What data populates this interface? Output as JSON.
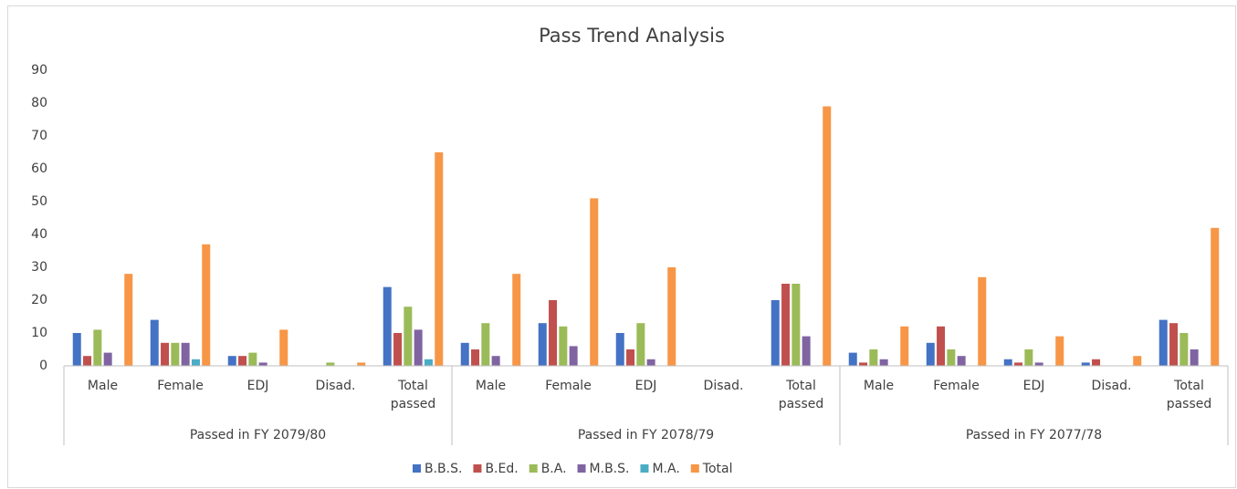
{
  "chart_data": {
    "type": "bar",
    "title": "Pass Trend Analysis",
    "categories": [
      "Male",
      "Female",
      "EDJ",
      "Disad.",
      "Total passed",
      "Male",
      "Female",
      "EDJ",
      "Disad.",
      "Total passed",
      "Male",
      "Female",
      "EDJ",
      "Disad.",
      "Total passed"
    ],
    "groups": [
      "Passed in FY 2079/80",
      "Passed in FY 2078/79",
      "Passed in FY 2077/78"
    ],
    "series": [
      {
        "name": "B.B.S.",
        "color": "#4472c4",
        "values": [
          10,
          14,
          3,
          0,
          24,
          7,
          13,
          10,
          0,
          20,
          4,
          7,
          2,
          1,
          14
        ]
      },
      {
        "name": "B.Ed.",
        "color": "#c0504d",
        "values": [
          3,
          7,
          3,
          0,
          10,
          5,
          20,
          5,
          0,
          25,
          1,
          12,
          1,
          2,
          13
        ]
      },
      {
        "name": "B.A.",
        "color": "#9bbb59",
        "values": [
          11,
          7,
          4,
          1,
          18,
          13,
          12,
          13,
          0,
          25,
          5,
          5,
          5,
          0,
          10
        ]
      },
      {
        "name": "M.B.S.",
        "color": "#8064a2",
        "values": [
          4,
          7,
          1,
          0,
          11,
          3,
          6,
          2,
          0,
          9,
          2,
          3,
          1,
          0,
          5
        ]
      },
      {
        "name": "M.A.",
        "color": "#4bacc6",
        "values": [
          0,
          2,
          0,
          0,
          2,
          0,
          0,
          0,
          0,
          0,
          0,
          0,
          0,
          0,
          0
        ]
      },
      {
        "name": "Total",
        "color": "#f79646",
        "values": [
          28,
          37,
          11,
          1,
          65,
          28,
          51,
          30,
          0,
          79,
          12,
          27,
          9,
          3,
          42
        ]
      }
    ],
    "ylim": [
      0,
      90
    ],
    "yticks": [
      0,
      10,
      20,
      30,
      40,
      50,
      60,
      70,
      80,
      90
    ],
    "grid": false,
    "legend": "bottom"
  }
}
